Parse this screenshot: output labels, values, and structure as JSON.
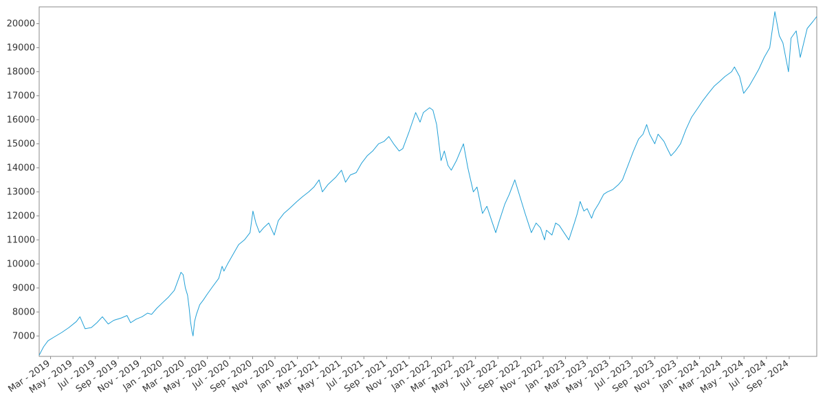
{
  "chart_data": {
    "type": "line",
    "title": "",
    "xlabel": "",
    "ylabel": "",
    "grid": false,
    "legend": "none",
    "colors": {
      "line": "#1f9fd6",
      "frame": "#888888",
      "text": "#333333"
    },
    "xlim": [
      "2019-01-29",
      "2024-11-15"
    ],
    "ylim": [
      6150,
      20700
    ],
    "yticks": [
      7000,
      8000,
      9000,
      10000,
      11000,
      12000,
      13000,
      14000,
      15000,
      16000,
      17000,
      18000,
      19000,
      20000
    ],
    "xticks": [
      {
        "date": "2019-03-01",
        "label": "Mar - 2019"
      },
      {
        "date": "2019-05-01",
        "label": "May - 2019"
      },
      {
        "date": "2019-07-01",
        "label": "Jul - 2019"
      },
      {
        "date": "2019-09-01",
        "label": "Sep - 2019"
      },
      {
        "date": "2019-11-01",
        "label": "Nov - 2019"
      },
      {
        "date": "2020-01-01",
        "label": "Jan - 2020"
      },
      {
        "date": "2020-03-01",
        "label": "Mar - 2020"
      },
      {
        "date": "2020-05-01",
        "label": "May - 2020"
      },
      {
        "date": "2020-07-01",
        "label": "Jul - 2020"
      },
      {
        "date": "2020-09-01",
        "label": "Sep - 2020"
      },
      {
        "date": "2020-11-01",
        "label": "Nov - 2020"
      },
      {
        "date": "2021-01-01",
        "label": "Jan - 2021"
      },
      {
        "date": "2021-03-01",
        "label": "Mar - 2021"
      },
      {
        "date": "2021-05-01",
        "label": "May - 2021"
      },
      {
        "date": "2021-07-01",
        "label": "Jul - 2021"
      },
      {
        "date": "2021-09-01",
        "label": "Sep - 2021"
      },
      {
        "date": "2021-11-01",
        "label": "Nov - 2021"
      },
      {
        "date": "2022-01-01",
        "label": "Jan - 2022"
      },
      {
        "date": "2022-03-01",
        "label": "Mar - 2022"
      },
      {
        "date": "2022-05-01",
        "label": "May - 2022"
      },
      {
        "date": "2022-07-01",
        "label": "Jul - 2022"
      },
      {
        "date": "2022-09-01",
        "label": "Sep - 2022"
      },
      {
        "date": "2022-11-01",
        "label": "Nov - 2022"
      },
      {
        "date": "2023-01-01",
        "label": "Jan - 2023"
      },
      {
        "date": "2023-03-01",
        "label": "Mar - 2023"
      },
      {
        "date": "2023-05-01",
        "label": "May - 2023"
      },
      {
        "date": "2023-07-01",
        "label": "Jul - 2023"
      },
      {
        "date": "2023-09-01",
        "label": "Sep - 2023"
      },
      {
        "date": "2023-11-01",
        "label": "Nov - 2023"
      },
      {
        "date": "2024-01-01",
        "label": "Jan - 2024"
      },
      {
        "date": "2024-03-01",
        "label": "Mar - 2024"
      },
      {
        "date": "2024-05-01",
        "label": "May - 2024"
      },
      {
        "date": "2024-07-01",
        "label": "Jul - 2024"
      },
      {
        "date": "2024-09-01",
        "label": "Sep - 2024"
      }
    ],
    "series": [
      {
        "x": [
          "2019-01-29",
          "2019-02-10",
          "2019-02-22",
          "2019-03-10",
          "2019-04-01",
          "2019-04-20",
          "2019-05-10",
          "2019-05-20",
          "2019-06-03",
          "2019-06-20",
          "2019-07-05",
          "2019-07-20",
          "2019-08-05",
          "2019-08-20",
          "2019-09-10",
          "2019-09-25",
          "2019-10-05",
          "2019-10-20",
          "2019-11-05",
          "2019-11-20",
          "2019-12-01",
          "2019-12-15",
          "2020-01-01",
          "2020-01-15",
          "2020-02-01",
          "2020-02-19",
          "2020-02-25",
          "2020-03-02",
          "2020-03-08",
          "2020-03-12",
          "2020-03-16",
          "2020-03-20",
          "2020-03-23",
          "2020-03-27",
          "2020-04-01",
          "2020-04-10",
          "2020-04-20",
          "2020-05-01",
          "2020-05-15",
          "2020-06-01",
          "2020-06-10",
          "2020-06-15",
          "2020-06-25",
          "2020-07-10",
          "2020-07-25",
          "2020-08-10",
          "2020-08-25",
          "2020-09-02",
          "2020-09-10",
          "2020-09-20",
          "2020-10-01",
          "2020-10-15",
          "2020-10-30",
          "2020-11-10",
          "2020-11-25",
          "2020-12-10",
          "2020-12-31",
          "2021-01-15",
          "2021-02-01",
          "2021-02-15",
          "2021-03-01",
          "2021-03-10",
          "2021-03-25",
          "2021-04-15",
          "2021-05-01",
          "2021-05-12",
          "2021-05-25",
          "2021-06-10",
          "2021-06-25",
          "2021-07-10",
          "2021-07-25",
          "2021-08-10",
          "2021-08-25",
          "2021-09-07",
          "2021-09-20",
          "2021-10-05",
          "2021-10-15",
          "2021-11-01",
          "2021-11-19",
          "2021-12-01",
          "2021-12-10",
          "2021-12-27",
          "2022-01-05",
          "2022-01-15",
          "2022-01-27",
          "2022-02-05",
          "2022-02-15",
          "2022-02-24",
          "2022-03-10",
          "2022-03-29",
          "2022-04-10",
          "2022-04-25",
          "2022-05-05",
          "2022-05-20",
          "2022-06-01",
          "2022-06-16",
          "2022-06-25",
          "2022-07-05",
          "2022-07-20",
          "2022-08-01",
          "2022-08-16",
          "2022-08-30",
          "2022-09-13",
          "2022-09-30",
          "2022-10-13",
          "2022-10-25",
          "2022-11-05",
          "2022-11-10",
          "2022-11-25",
          "2022-12-05",
          "2022-12-15",
          "2022-12-28",
          "2023-01-10",
          "2023-01-25",
          "2023-02-02",
          "2023-02-10",
          "2023-02-20",
          "2023-03-01",
          "2023-03-10",
          "2023-03-13",
          "2023-03-20",
          "2023-04-01",
          "2023-04-15",
          "2023-04-25",
          "2023-05-10",
          "2023-05-25",
          "2023-06-05",
          "2023-06-20",
          "2023-07-05",
          "2023-07-19",
          "2023-07-31",
          "2023-08-10",
          "2023-08-18",
          "2023-09-01",
          "2023-09-10",
          "2023-09-26",
          "2023-10-05",
          "2023-10-15",
          "2023-10-27",
          "2023-11-10",
          "2023-11-25",
          "2023-12-10",
          "2023-12-28",
          "2024-01-10",
          "2024-01-25",
          "2024-02-10",
          "2024-02-25",
          "2024-03-10",
          "2024-03-28",
          "2024-04-05",
          "2024-04-19",
          "2024-04-30",
          "2024-05-15",
          "2024-05-30",
          "2024-06-10",
          "2024-06-25",
          "2024-07-10",
          "2024-07-24",
          "2024-08-05",
          "2024-08-15",
          "2024-08-30",
          "2024-09-06",
          "2024-09-20",
          "2024-10-01",
          "2024-10-20",
          "2024-11-05",
          "2024-11-15"
        ],
        "y": [
          6200,
          6550,
          6800,
          6950,
          7150,
          7350,
          7600,
          7800,
          7300,
          7350,
          7550,
          7800,
          7500,
          7650,
          7750,
          7850,
          7550,
          7700,
          7800,
          7950,
          7900,
          8150,
          8400,
          8600,
          8900,
          9650,
          9550,
          9000,
          8700,
          8200,
          7600,
          7200,
          7000,
          7600,
          7900,
          8300,
          8500,
          8750,
          9050,
          9400,
          9900,
          9700,
          10000,
          10400,
          10800,
          11000,
          11300,
          12200,
          11700,
          11300,
          11500,
          11700,
          11200,
          11800,
          12100,
          12300,
          12600,
          12800,
          13000,
          13200,
          13500,
          13000,
          13300,
          13600,
          13900,
          13400,
          13700,
          13800,
          14200,
          14500,
          14700,
          15000,
          15100,
          15300,
          15000,
          14700,
          14800,
          15500,
          16300,
          15900,
          16300,
          16500,
          16400,
          15800,
          14300,
          14700,
          14100,
          13900,
          14300,
          15000,
          14000,
          13000,
          13200,
          12100,
          12400,
          11700,
          11300,
          11800,
          12500,
          12900,
          13500,
          12800,
          12100,
          11300,
          11700,
          11500,
          11000,
          11400,
          11200,
          11700,
          11600,
          11300,
          11000,
          11700,
          12100,
          12600,
          12200,
          12300,
          12000,
          11900,
          12200,
          12500,
          12900,
          13000,
          13100,
          13300,
          13500,
          14100,
          14700,
          15200,
          15400,
          15800,
          15400,
          15000,
          15400,
          15100,
          14800,
          14500,
          14700,
          15000,
          15600,
          16100,
          16500,
          16800,
          17100,
          17400,
          17600,
          17800,
          18000,
          18200,
          17800,
          17100,
          17400,
          17800,
          18100,
          18600,
          19000,
          20500,
          19500,
          19200,
          18000,
          19400,
          19700,
          18600,
          19800,
          20100,
          20300
        ]
      }
    ]
  }
}
